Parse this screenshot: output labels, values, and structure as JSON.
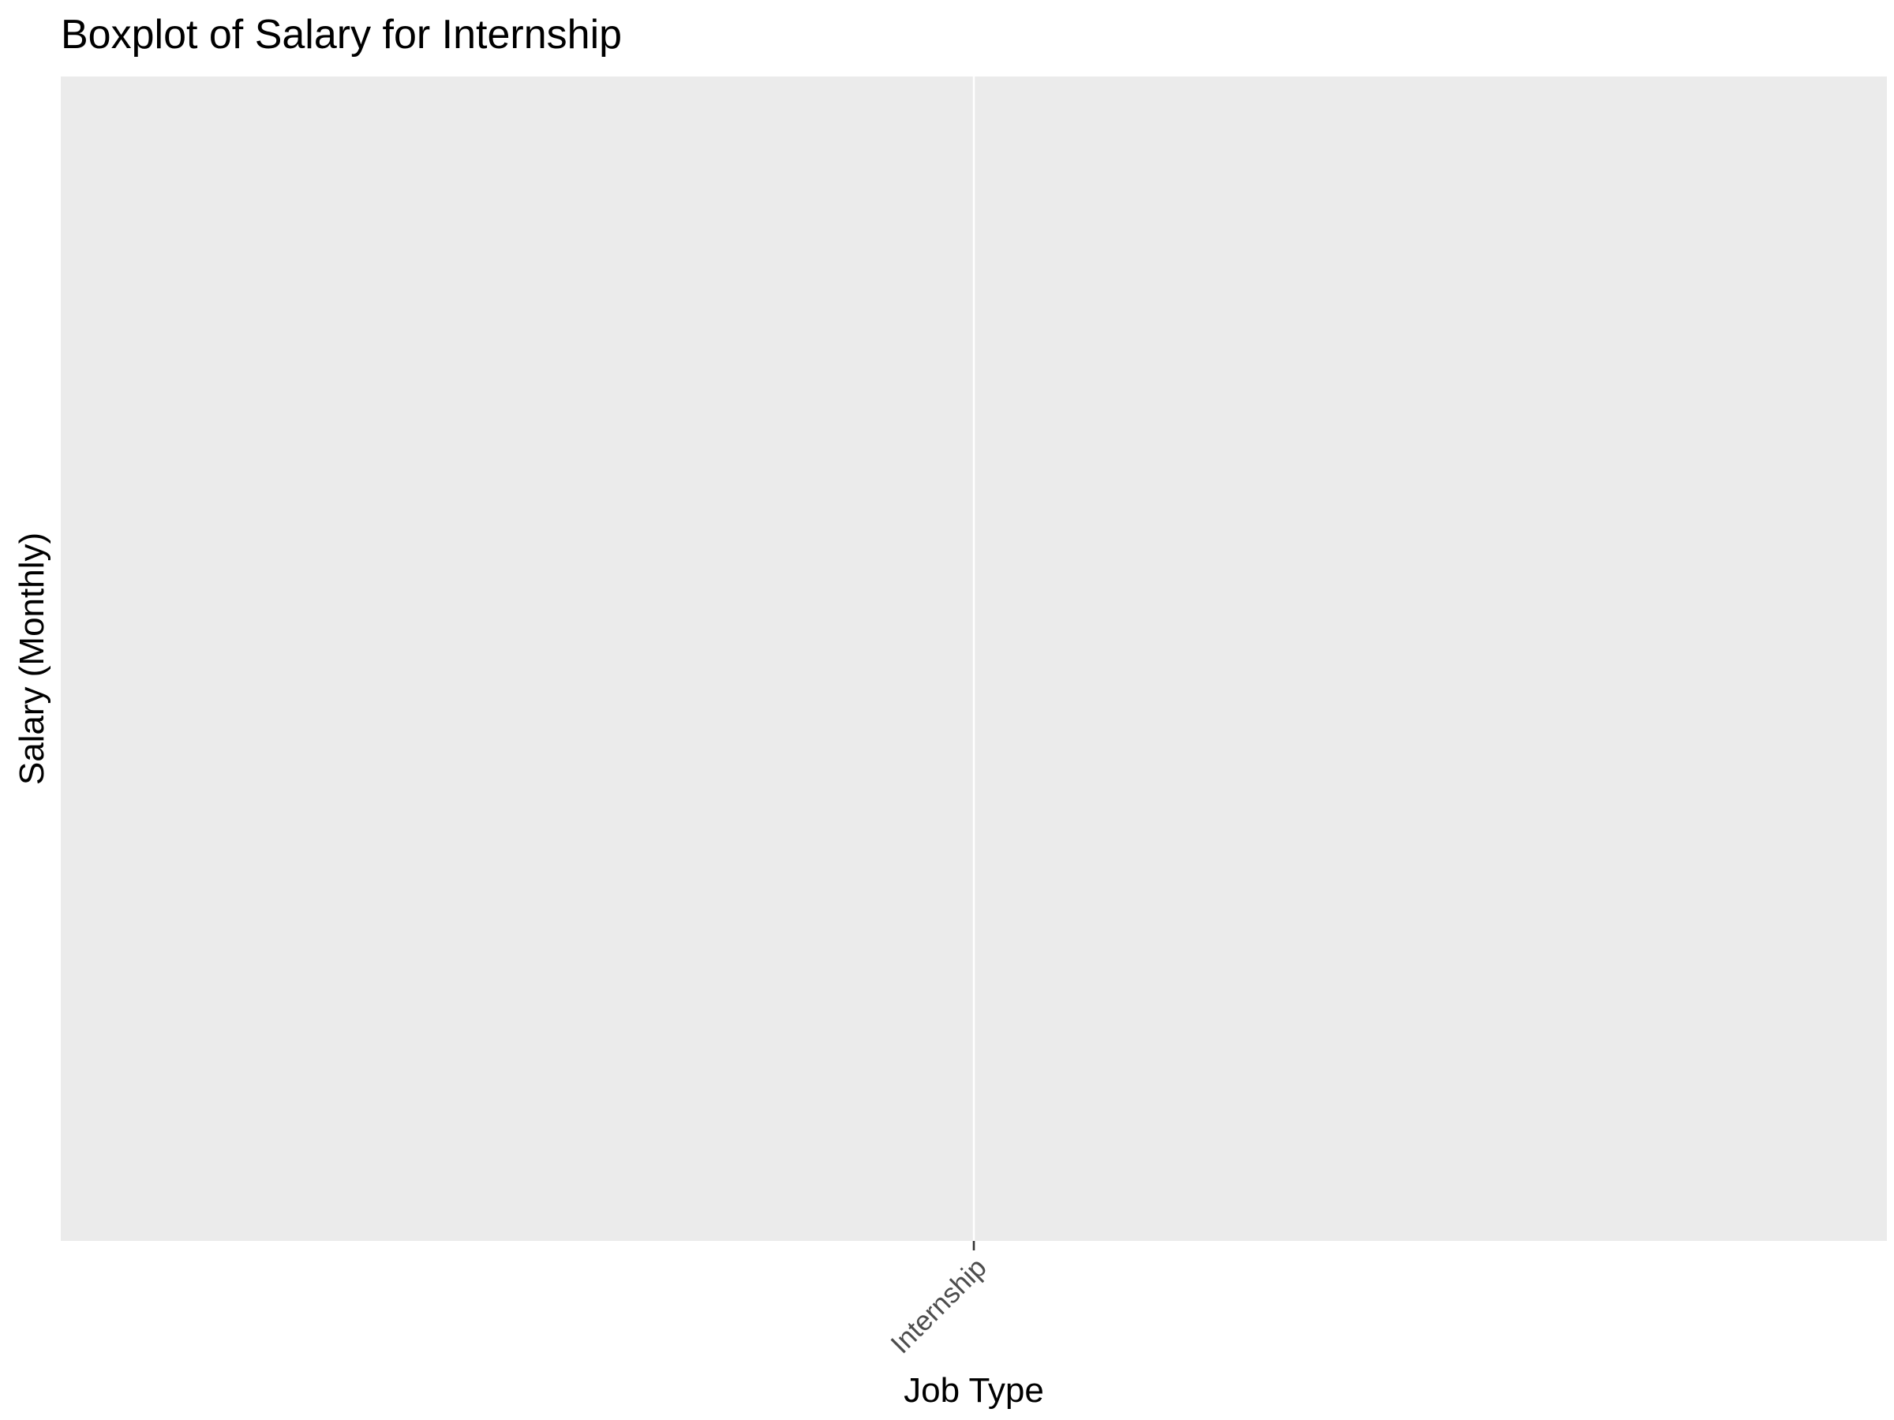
{
  "chart_data": {
    "type": "box",
    "title": "Boxplot of Salary for Internship",
    "xlabel": "Job Type",
    "ylabel": "Salary (Monthly)",
    "categories": [
      "Internship"
    ],
    "series": [
      {
        "category": "Internship",
        "min": null,
        "q1": null,
        "median": null,
        "q3": null,
        "max": null
      }
    ],
    "grid": true,
    "legend": "none",
    "x_tick_rotation_deg": 45
  },
  "colors": {
    "panel_background": "#EBEBEB",
    "grid_line": "#FFFFFF",
    "tick_mark": "#333333",
    "tick_label": "#4D4D4D",
    "title_text": "#000000"
  }
}
